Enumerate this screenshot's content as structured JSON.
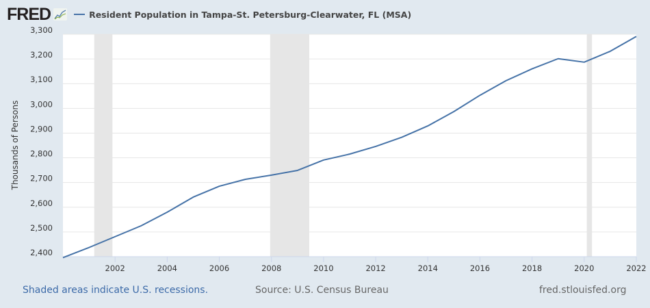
{
  "header": {
    "logo": "FRED",
    "title": "Resident Population in Tampa-St. Petersburg-Clearwater, FL (MSA)"
  },
  "footer": {
    "recession_note": "Shaded areas indicate U.S. recessions.",
    "source": "Source: U.S. Census Bureau",
    "site": "fred.stlouisfed.org"
  },
  "colors": {
    "line": "#4572a7",
    "recession": "#e6e6e6",
    "background": "#e1e9f0"
  },
  "chart_data": {
    "type": "line",
    "title": "Resident Population in Tampa-St. Petersburg-Clearwater, FL (MSA)",
    "xlabel": "",
    "ylabel": "Thousands of Persons",
    "ylim": [
      2400,
      3300
    ],
    "xlim": [
      2000,
      2022
    ],
    "grid": true,
    "legend_position": "top",
    "yticks": [
      "2,400",
      "2,500",
      "2,600",
      "2,700",
      "2,800",
      "2,900",
      "3,000",
      "3,100",
      "3,200",
      "3,300"
    ],
    "xticks": [
      "2002",
      "2004",
      "2006",
      "2008",
      "2010",
      "2012",
      "2014",
      "2016",
      "2018",
      "2020",
      "2022"
    ],
    "recessions": [
      [
        2001.2,
        2001.9
      ],
      [
        2007.95,
        2009.45
      ],
      [
        2020.1,
        2020.3
      ]
    ],
    "series": [
      {
        "name": "Resident Population in Tampa-St. Petersburg-Clearwater, FL (MSA)",
        "x": [
          2000,
          2001,
          2002,
          2003,
          2004,
          2005,
          2006,
          2007,
          2008,
          2009,
          2010,
          2011,
          2012,
          2013,
          2014,
          2015,
          2016,
          2017,
          2018,
          2019,
          2020,
          2021,
          2022
        ],
        "values": [
          2396,
          2437,
          2481,
          2525,
          2580,
          2641,
          2685,
          2713,
          2730,
          2749,
          2791,
          2815,
          2846,
          2883,
          2929,
          2987,
          3053,
          3112,
          3160,
          3201,
          3187,
          3231,
          3291
        ]
      }
    ]
  }
}
